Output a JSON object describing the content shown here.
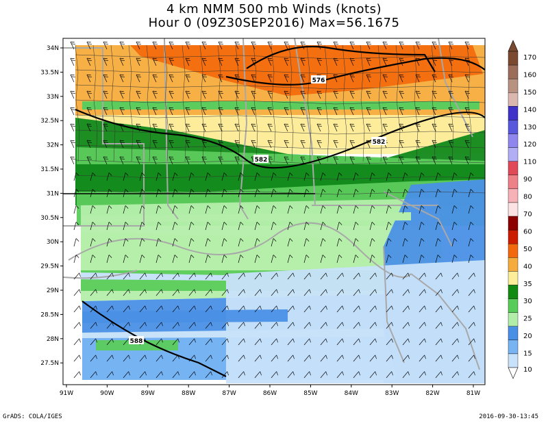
{
  "title_line1": "4 km NMM 500 mb Winds (knots)",
  "title_line2": "Hour 0 (09Z30SEP2016) Max=56.1675",
  "footer_left": "GrADS: COLA/IGES",
  "footer_right": "2016-09-30-13:45",
  "lat_labels": [
    "34N",
    "33.5N",
    "33N",
    "32.5N",
    "32N",
    "31.5N",
    "31N",
    "30.5N",
    "30N",
    "29.5N",
    "29N",
    "28.5N",
    "28N",
    "27.5N"
  ],
  "lon_labels": [
    "91W",
    "90W",
    "89W",
    "88W",
    "87W",
    "86W",
    "85W",
    "84W",
    "83W",
    "82W",
    "81W"
  ],
  "contour_labels": [
    "576",
    "582",
    "582",
    "588"
  ],
  "colorbar": {
    "levels": [
      "170",
      "160",
      "150",
      "140",
      "130",
      "120",
      "110",
      "90",
      "80",
      "70",
      "60",
      "50",
      "40",
      "35",
      "30",
      "25",
      "20",
      "15",
      "10"
    ],
    "colors": [
      "#7a4a30",
      "#9a6e5a",
      "#b89280",
      "#dab8b0",
      "#3e32c8",
      "#5858dc",
      "#8f86ee",
      "#b2aef6",
      "#e04a58",
      "#ee8088",
      "#f6b2b6",
      "#fde2e4",
      "#8c0000",
      "#cc1c00",
      "#f2680c",
      "#f5ac3c",
      "#fdee9a",
      "#118a11",
      "#58cc58",
      "#b2eeaa",
      "#4a8fe6",
      "#78b4f2",
      "#c8e2fa"
    ]
  },
  "colors": {
    "c50": "#f26b0e",
    "c40": "#f6ac3c",
    "c35": "#fdf0a0",
    "c30": "#11891a",
    "c25": "#5ccc5c",
    "c20": "#b4eeaa",
    "c15": "#4a90e6",
    "c10": "#78b4f2",
    "c05": "#c8e2fa",
    "land_border": "#a8a8a8"
  }
}
